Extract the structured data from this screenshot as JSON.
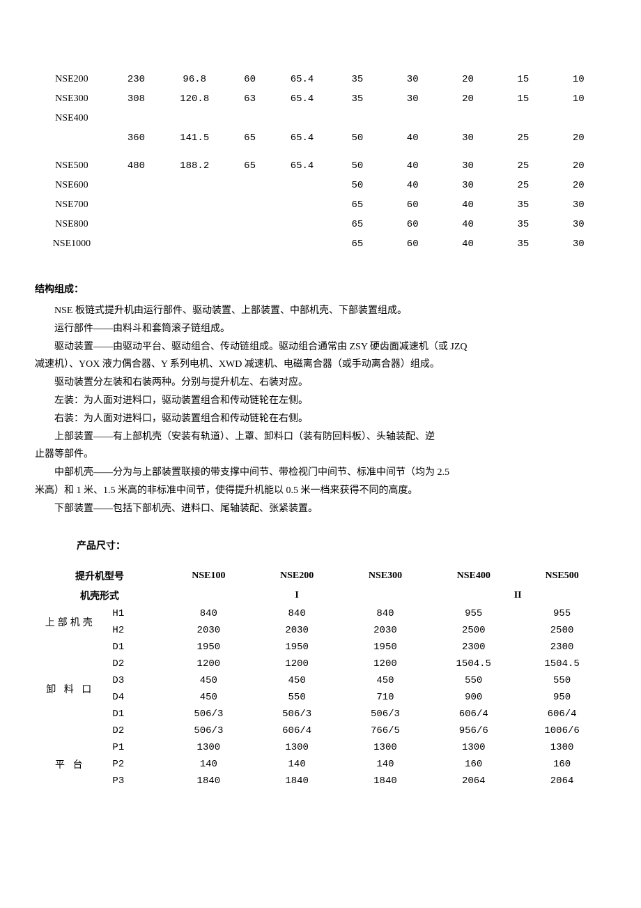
{
  "table1": {
    "rows": [
      {
        "label": "NSE200",
        "c1": "230",
        "c2": "96.8",
        "c3": "60",
        "c4": "65.4",
        "c5": "35",
        "c6": "30",
        "c7": "20",
        "c8": "15",
        "c9": "10"
      },
      {
        "label": "NSE300",
        "c1": "308",
        "c2": "120.8",
        "c3": "63",
        "c4": "65.4",
        "c5": "35",
        "c6": "30",
        "c7": "20",
        "c8": "15",
        "c9": "10"
      },
      {
        "label": "NSE400",
        "c1": "360",
        "c2": "141.5",
        "c3": "65",
        "c4": "65.4",
        "c5": "50",
        "c6": "40",
        "c7": "30",
        "c8": "25",
        "c9": "20"
      },
      {
        "label": "NSE500",
        "c1": "480",
        "c2": "188.2",
        "c3": "65",
        "c4": "65.4",
        "c5": "50",
        "c6": "40",
        "c7": "30",
        "c8": "25",
        "c9": "20"
      },
      {
        "label": "NSE600",
        "c1": "",
        "c2": "",
        "c3": "",
        "c4": "",
        "c5": "50",
        "c6": "40",
        "c7": "30",
        "c8": "25",
        "c9": "20"
      },
      {
        "label": "NSE700",
        "c1": "",
        "c2": "",
        "c3": "",
        "c4": "",
        "c5": "65",
        "c6": "60",
        "c7": "40",
        "c8": "35",
        "c9": "30"
      },
      {
        "label": "NSE800",
        "c1": "",
        "c2": "",
        "c3": "",
        "c4": "",
        "c5": "65",
        "c6": "60",
        "c7": "40",
        "c8": "35",
        "c9": "30"
      },
      {
        "label": "NSE1000",
        "c1": "",
        "c2": "",
        "c3": "",
        "c4": "",
        "c5": "65",
        "c6": "60",
        "c7": "40",
        "c8": "35",
        "c9": "30"
      }
    ]
  },
  "section1": {
    "title": "结构组成：",
    "p1": "NSE 板链式提升机由运行部件、驱动装置、上部装置、中部机壳、下部装置组成。",
    "p2": "运行部件——由料斗和套筒滚子链组成。",
    "p3": "驱动装置——由驱动平台、驱动组合、传动链组成。驱动组合通常由 ZSY 硬齿面减速机（或 JZQ",
    "p3b": "减速机）、YOX 液力偶合器、Y 系列电机、XWD 减速机、电磁离合器（或手动离合器）组成。",
    "p4": "驱动装置分左装和右装两种。分别与提升机左、右装对应。",
    "p5": "左装：为人面对进料口，驱动装置组合和传动链轮在左侧。",
    "p6": "右装：为人面对进料口，驱动装置组合和传动链轮在右侧。",
    "p7": "上部装置——有上部机壳（安装有轨道）、上罩、卸料口（装有防回料板）、头轴装配、逆",
    "p7b": "止器等部件。",
    "p8": "中部机壳——分为与上部装置联接的带支撑中间节、带检视门中间节、标准中间节（均为 2.5",
    "p8b": "米高）和 1 米、1.5 米高的非标准中间节，使得提升机能以 0.5 米一档来获得不同的高度。",
    "p9": "下部装置——包括下部机壳、进料口、尾轴装配、张紧装置。"
  },
  "table2": {
    "title": "产品尺寸：",
    "header1": {
      "label": "提升机型号",
      "c1": "NSE100",
      "c2": "NSE200",
      "c3": "NSE300",
      "c4": "NSE400",
      "c5": "NSE500"
    },
    "header2": {
      "label": "机壳形式",
      "span1": "I",
      "span2": "II"
    },
    "groups": [
      {
        "label": "上部机壳",
        "rows": [
          {
            "sub": "H1",
            "c1": "840",
            "c2": "840",
            "c3": "840",
            "c4": "955",
            "c5": "955"
          },
          {
            "sub": "H2",
            "c1": "2030",
            "c2": "2030",
            "c3": "2030",
            "c4": "2500",
            "c5": "2500"
          }
        ]
      },
      {
        "label": "卸 料 口",
        "rows": [
          {
            "sub": "D1",
            "c1": "1950",
            "c2": "1950",
            "c3": "1950",
            "c4": "2300",
            "c5": "2300"
          },
          {
            "sub": "D2",
            "c1": "1200",
            "c2": "1200",
            "c3": "1200",
            "c4": "1504.5",
            "c5": "1504.5"
          },
          {
            "sub": "D3",
            "c1": "450",
            "c2": "450",
            "c3": "450",
            "c4": "550",
            "c5": "550"
          },
          {
            "sub": "D4",
            "c1": "450",
            "c2": "550",
            "c3": "710",
            "c4": "900",
            "c5": "950"
          },
          {
            "sub": "D1",
            "c1": "506/3",
            "c2": "506/3",
            "c3": "506/3",
            "c4": "606/4",
            "c5": "606/4"
          },
          {
            "sub": "D2",
            "c1": "506/3",
            "c2": "606/4",
            "c3": "766/5",
            "c4": "956/6",
            "c5": "1006/6"
          }
        ]
      },
      {
        "label": "平 台",
        "rows": [
          {
            "sub": "P1",
            "c1": "1300",
            "c2": "1300",
            "c3": "1300",
            "c4": "1300",
            "c5": "1300"
          },
          {
            "sub": "P2",
            "c1": "140",
            "c2": "140",
            "c3": "140",
            "c4": "160",
            "c5": "160"
          },
          {
            "sub": "P3",
            "c1": "1840",
            "c2": "1840",
            "c3": "1840",
            "c4": "2064",
            "c5": "2064"
          }
        ]
      }
    ]
  }
}
